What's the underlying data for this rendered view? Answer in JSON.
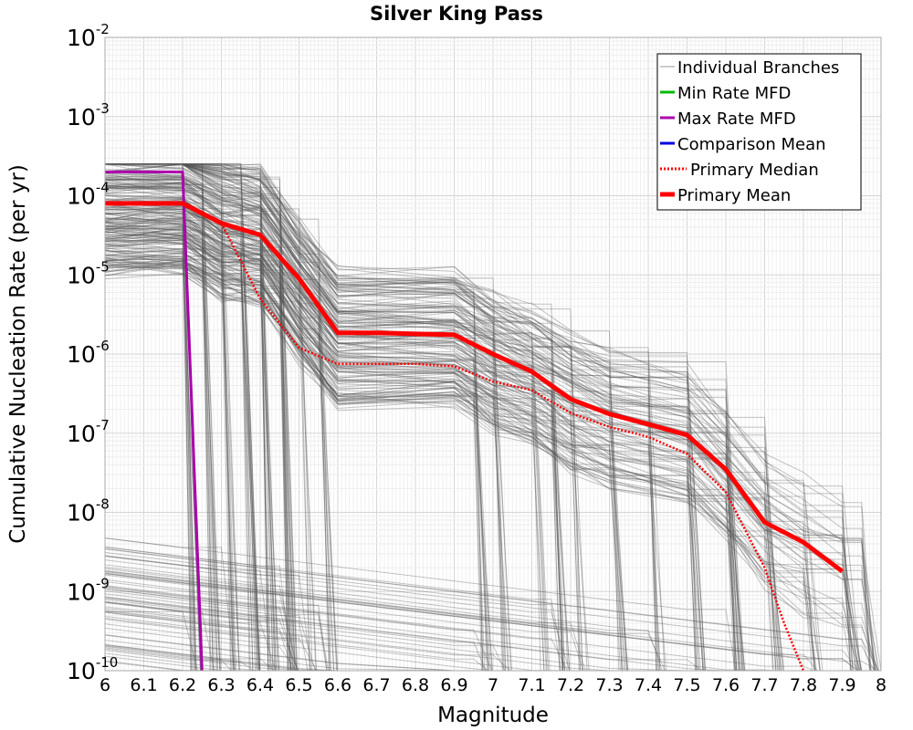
{
  "chart_data": {
    "type": "line",
    "title": "Silver King Pass",
    "xlabel": "Magnitude",
    "ylabel": "Cumulative Nucleation Rate (per yr)",
    "xlim": [
      6,
      8
    ],
    "ylim": [
      1e-10,
      0.01
    ],
    "yscale": "log",
    "grid": true,
    "legend_position": "top-right",
    "xticks": [
      "6",
      "6.1",
      "6.2",
      "6.3",
      "6.4",
      "6.5",
      "6.6",
      "6.7",
      "6.8",
      "6.9",
      "7",
      "7.1",
      "7.2",
      "7.3",
      "7.4",
      "7.5",
      "7.6",
      "7.7",
      "7.8",
      "7.9",
      "8"
    ],
    "yticks": [
      {
        "base": "10",
        "exp": "-10"
      },
      {
        "base": "10",
        "exp": "-9"
      },
      {
        "base": "10",
        "exp": "-8"
      },
      {
        "base": "10",
        "exp": "-7"
      },
      {
        "base": "10",
        "exp": "-6"
      },
      {
        "base": "10",
        "exp": "-5"
      },
      {
        "base": "10",
        "exp": "-4"
      },
      {
        "base": "10",
        "exp": "-3"
      },
      {
        "base": "10",
        "exp": "-2"
      }
    ],
    "series": [
      {
        "name": "Individual Branches",
        "color": "#555555",
        "style": "thin",
        "note_branches": "hundreds of thin gray branch curves spanning 1e-10 to 2e-4"
      },
      {
        "name": "Min Rate MFD",
        "color": "#00bb00",
        "style": "solid",
        "x": [],
        "y": []
      },
      {
        "name": "Max Rate MFD",
        "color": "#aa00aa",
        "style": "solid",
        "x": [
          6.0,
          6.2,
          6.25
        ],
        "y": [
          0.0002,
          0.0002,
          1e-10
        ]
      },
      {
        "name": "Comparison Mean",
        "color": "#0000dd",
        "style": "solid",
        "x": [],
        "y": []
      },
      {
        "name": "Primary Median",
        "color": "#ff0000",
        "style": "dotted",
        "x": [
          6.3,
          6.35,
          6.4,
          6.5,
          6.6,
          6.7,
          6.8,
          6.9,
          7.0,
          7.1,
          7.2,
          7.3,
          7.4,
          7.5,
          7.6,
          7.7,
          7.75,
          7.8
        ],
        "y": [
          4.5e-05,
          1.5e-05,
          5e-06,
          1.2e-06,
          7.5e-07,
          7.5e-07,
          7.5e-07,
          7e-07,
          4.5e-07,
          3.5e-07,
          1.8e-07,
          1.2e-07,
          9e-08,
          5.5e-08,
          1.8e-08,
          2e-09,
          4e-10,
          1e-10
        ]
      },
      {
        "name": "Primary Mean",
        "color": "#ff0000",
        "style": "thick",
        "x": [
          6.0,
          6.2,
          6.3,
          6.4,
          6.5,
          6.6,
          6.7,
          6.8,
          6.9,
          7.0,
          7.1,
          7.2,
          7.3,
          7.4,
          7.5,
          7.6,
          7.7,
          7.8,
          7.9
        ],
        "y": [
          8e-05,
          8e-05,
          4.5e-05,
          3.2e-05,
          9e-06,
          1.85e-06,
          1.85e-06,
          1.8e-06,
          1.75e-06,
          1e-06,
          6e-07,
          2.7e-07,
          1.75e-07,
          1.3e-07,
          9.5e-08,
          3.5e-08,
          7.5e-09,
          4.2e-09,
          1.8e-09
        ]
      }
    ]
  }
}
